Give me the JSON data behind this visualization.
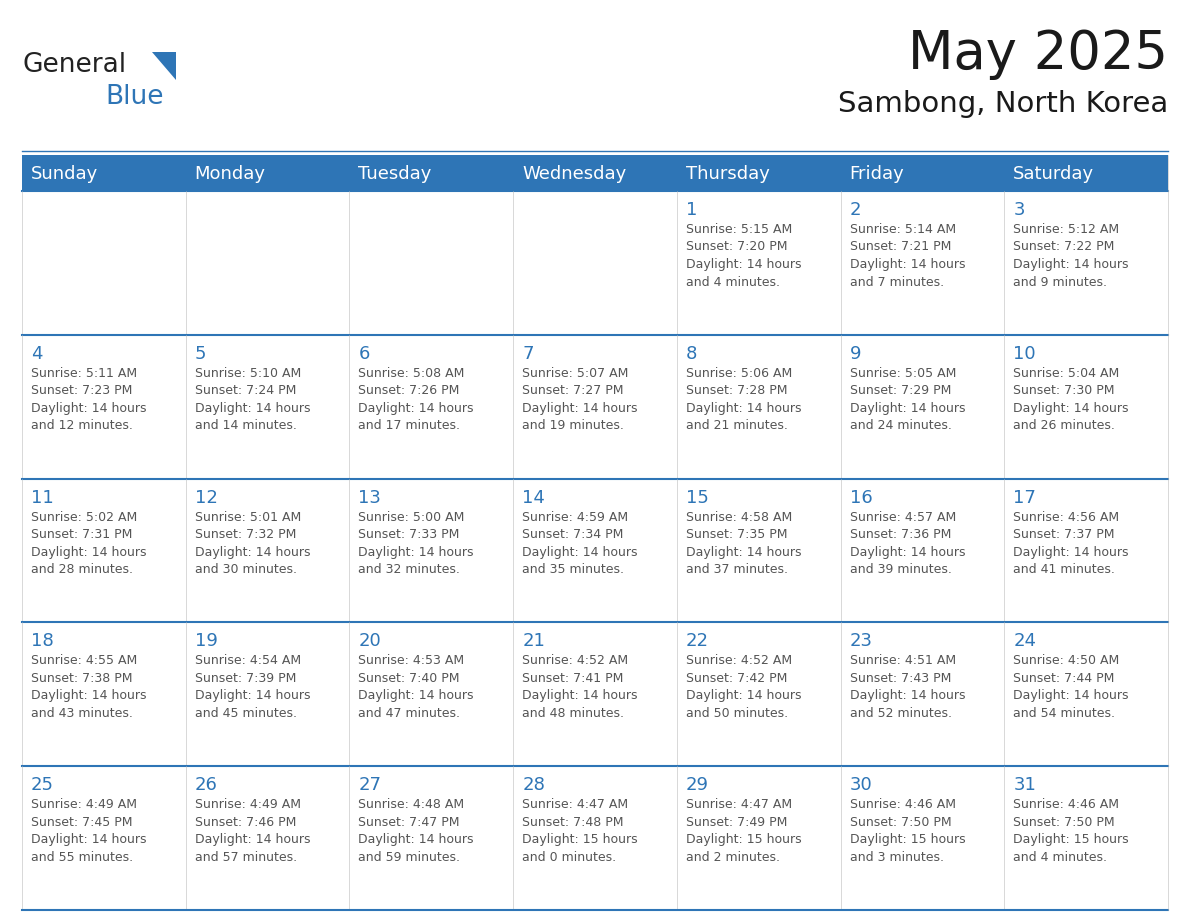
{
  "title": "May 2025",
  "subtitle": "Sambong, North Korea",
  "header_bg_color": "#2E75B6",
  "header_text_color": "#FFFFFF",
  "cell_bg_color": "#FFFFFF",
  "grid_line_color": "#2E75B6",
  "day_number_color": "#2E75B6",
  "text_color": "#555555",
  "days_of_week": [
    "Sunday",
    "Monday",
    "Tuesday",
    "Wednesday",
    "Thursday",
    "Friday",
    "Saturday"
  ],
  "weeks": [
    [
      {
        "day": 0,
        "sunrise": "",
        "sunset": "",
        "daylight": ""
      },
      {
        "day": 0,
        "sunrise": "",
        "sunset": "",
        "daylight": ""
      },
      {
        "day": 0,
        "sunrise": "",
        "sunset": "",
        "daylight": ""
      },
      {
        "day": 0,
        "sunrise": "",
        "sunset": "",
        "daylight": ""
      },
      {
        "day": 1,
        "sunrise": "5:15 AM",
        "sunset": "7:20 PM",
        "daylight": "14 hours and 4 minutes."
      },
      {
        "day": 2,
        "sunrise": "5:14 AM",
        "sunset": "7:21 PM",
        "daylight": "14 hours and 7 minutes."
      },
      {
        "day": 3,
        "sunrise": "5:12 AM",
        "sunset": "7:22 PM",
        "daylight": "14 hours and 9 minutes."
      }
    ],
    [
      {
        "day": 4,
        "sunrise": "5:11 AM",
        "sunset": "7:23 PM",
        "daylight": "14 hours and 12 minutes."
      },
      {
        "day": 5,
        "sunrise": "5:10 AM",
        "sunset": "7:24 PM",
        "daylight": "14 hours and 14 minutes."
      },
      {
        "day": 6,
        "sunrise": "5:08 AM",
        "sunset": "7:26 PM",
        "daylight": "14 hours and 17 minutes."
      },
      {
        "day": 7,
        "sunrise": "5:07 AM",
        "sunset": "7:27 PM",
        "daylight": "14 hours and 19 minutes."
      },
      {
        "day": 8,
        "sunrise": "5:06 AM",
        "sunset": "7:28 PM",
        "daylight": "14 hours and 21 minutes."
      },
      {
        "day": 9,
        "sunrise": "5:05 AM",
        "sunset": "7:29 PM",
        "daylight": "14 hours and 24 minutes."
      },
      {
        "day": 10,
        "sunrise": "5:04 AM",
        "sunset": "7:30 PM",
        "daylight": "14 hours and 26 minutes."
      }
    ],
    [
      {
        "day": 11,
        "sunrise": "5:02 AM",
        "sunset": "7:31 PM",
        "daylight": "14 hours and 28 minutes."
      },
      {
        "day": 12,
        "sunrise": "5:01 AM",
        "sunset": "7:32 PM",
        "daylight": "14 hours and 30 minutes."
      },
      {
        "day": 13,
        "sunrise": "5:00 AM",
        "sunset": "7:33 PM",
        "daylight": "14 hours and 32 minutes."
      },
      {
        "day": 14,
        "sunrise": "4:59 AM",
        "sunset": "7:34 PM",
        "daylight": "14 hours and 35 minutes."
      },
      {
        "day": 15,
        "sunrise": "4:58 AM",
        "sunset": "7:35 PM",
        "daylight": "14 hours and 37 minutes."
      },
      {
        "day": 16,
        "sunrise": "4:57 AM",
        "sunset": "7:36 PM",
        "daylight": "14 hours and 39 minutes."
      },
      {
        "day": 17,
        "sunrise": "4:56 AM",
        "sunset": "7:37 PM",
        "daylight": "14 hours and 41 minutes."
      }
    ],
    [
      {
        "day": 18,
        "sunrise": "4:55 AM",
        "sunset": "7:38 PM",
        "daylight": "14 hours and 43 minutes."
      },
      {
        "day": 19,
        "sunrise": "4:54 AM",
        "sunset": "7:39 PM",
        "daylight": "14 hours and 45 minutes."
      },
      {
        "day": 20,
        "sunrise": "4:53 AM",
        "sunset": "7:40 PM",
        "daylight": "14 hours and 47 minutes."
      },
      {
        "day": 21,
        "sunrise": "4:52 AM",
        "sunset": "7:41 PM",
        "daylight": "14 hours and 48 minutes."
      },
      {
        "day": 22,
        "sunrise": "4:52 AM",
        "sunset": "7:42 PM",
        "daylight": "14 hours and 50 minutes."
      },
      {
        "day": 23,
        "sunrise": "4:51 AM",
        "sunset": "7:43 PM",
        "daylight": "14 hours and 52 minutes."
      },
      {
        "day": 24,
        "sunrise": "4:50 AM",
        "sunset": "7:44 PM",
        "daylight": "14 hours and 54 minutes."
      }
    ],
    [
      {
        "day": 25,
        "sunrise": "4:49 AM",
        "sunset": "7:45 PM",
        "daylight": "14 hours and 55 minutes."
      },
      {
        "day": 26,
        "sunrise": "4:49 AM",
        "sunset": "7:46 PM",
        "daylight": "14 hours and 57 minutes."
      },
      {
        "day": 27,
        "sunrise": "4:48 AM",
        "sunset": "7:47 PM",
        "daylight": "14 hours and 59 minutes."
      },
      {
        "day": 28,
        "sunrise": "4:47 AM",
        "sunset": "7:48 PM",
        "daylight": "15 hours and 0 minutes."
      },
      {
        "day": 29,
        "sunrise": "4:47 AM",
        "sunset": "7:49 PM",
        "daylight": "15 hours and 2 minutes."
      },
      {
        "day": 30,
        "sunrise": "4:46 AM",
        "sunset": "7:50 PM",
        "daylight": "15 hours and 3 minutes."
      },
      {
        "day": 31,
        "sunrise": "4:46 AM",
        "sunset": "7:50 PM",
        "daylight": "15 hours and 4 minutes."
      }
    ]
  ],
  "logo_general_color": "#222222",
  "logo_blue_color": "#2E75B6",
  "title_fontsize": 38,
  "subtitle_fontsize": 21,
  "header_fontsize": 13,
  "day_number_fontsize": 13,
  "cell_text_fontsize": 9.0
}
